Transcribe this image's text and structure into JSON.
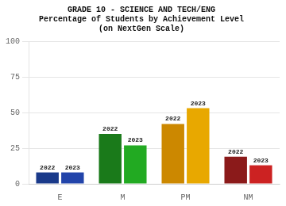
{
  "chart_data": {
    "type": "bar",
    "title": "GRADE 10 - SCIENCE AND TECH/ENG\nPercentage of Students by Achievement Level\n(on NextGen Scale)",
    "categories": [
      "E",
      "M",
      "PM",
      "NM"
    ],
    "series": [
      {
        "name": "2022",
        "colors": [
          "#1a3a8a",
          "#1a7a1a",
          "#cc8800",
          "#8b1a1a"
        ],
        "values": [
          8,
          35,
          42,
          19
        ]
      },
      {
        "name": "2023",
        "colors": [
          "#2244aa",
          "#22aa22",
          "#e8a800",
          "#cc2222"
        ],
        "values": [
          8,
          27,
          53,
          13
        ]
      }
    ],
    "ylim": [
      0,
      100
    ],
    "yticks": [
      0,
      25,
      50,
      75,
      100
    ],
    "grid": true
  }
}
